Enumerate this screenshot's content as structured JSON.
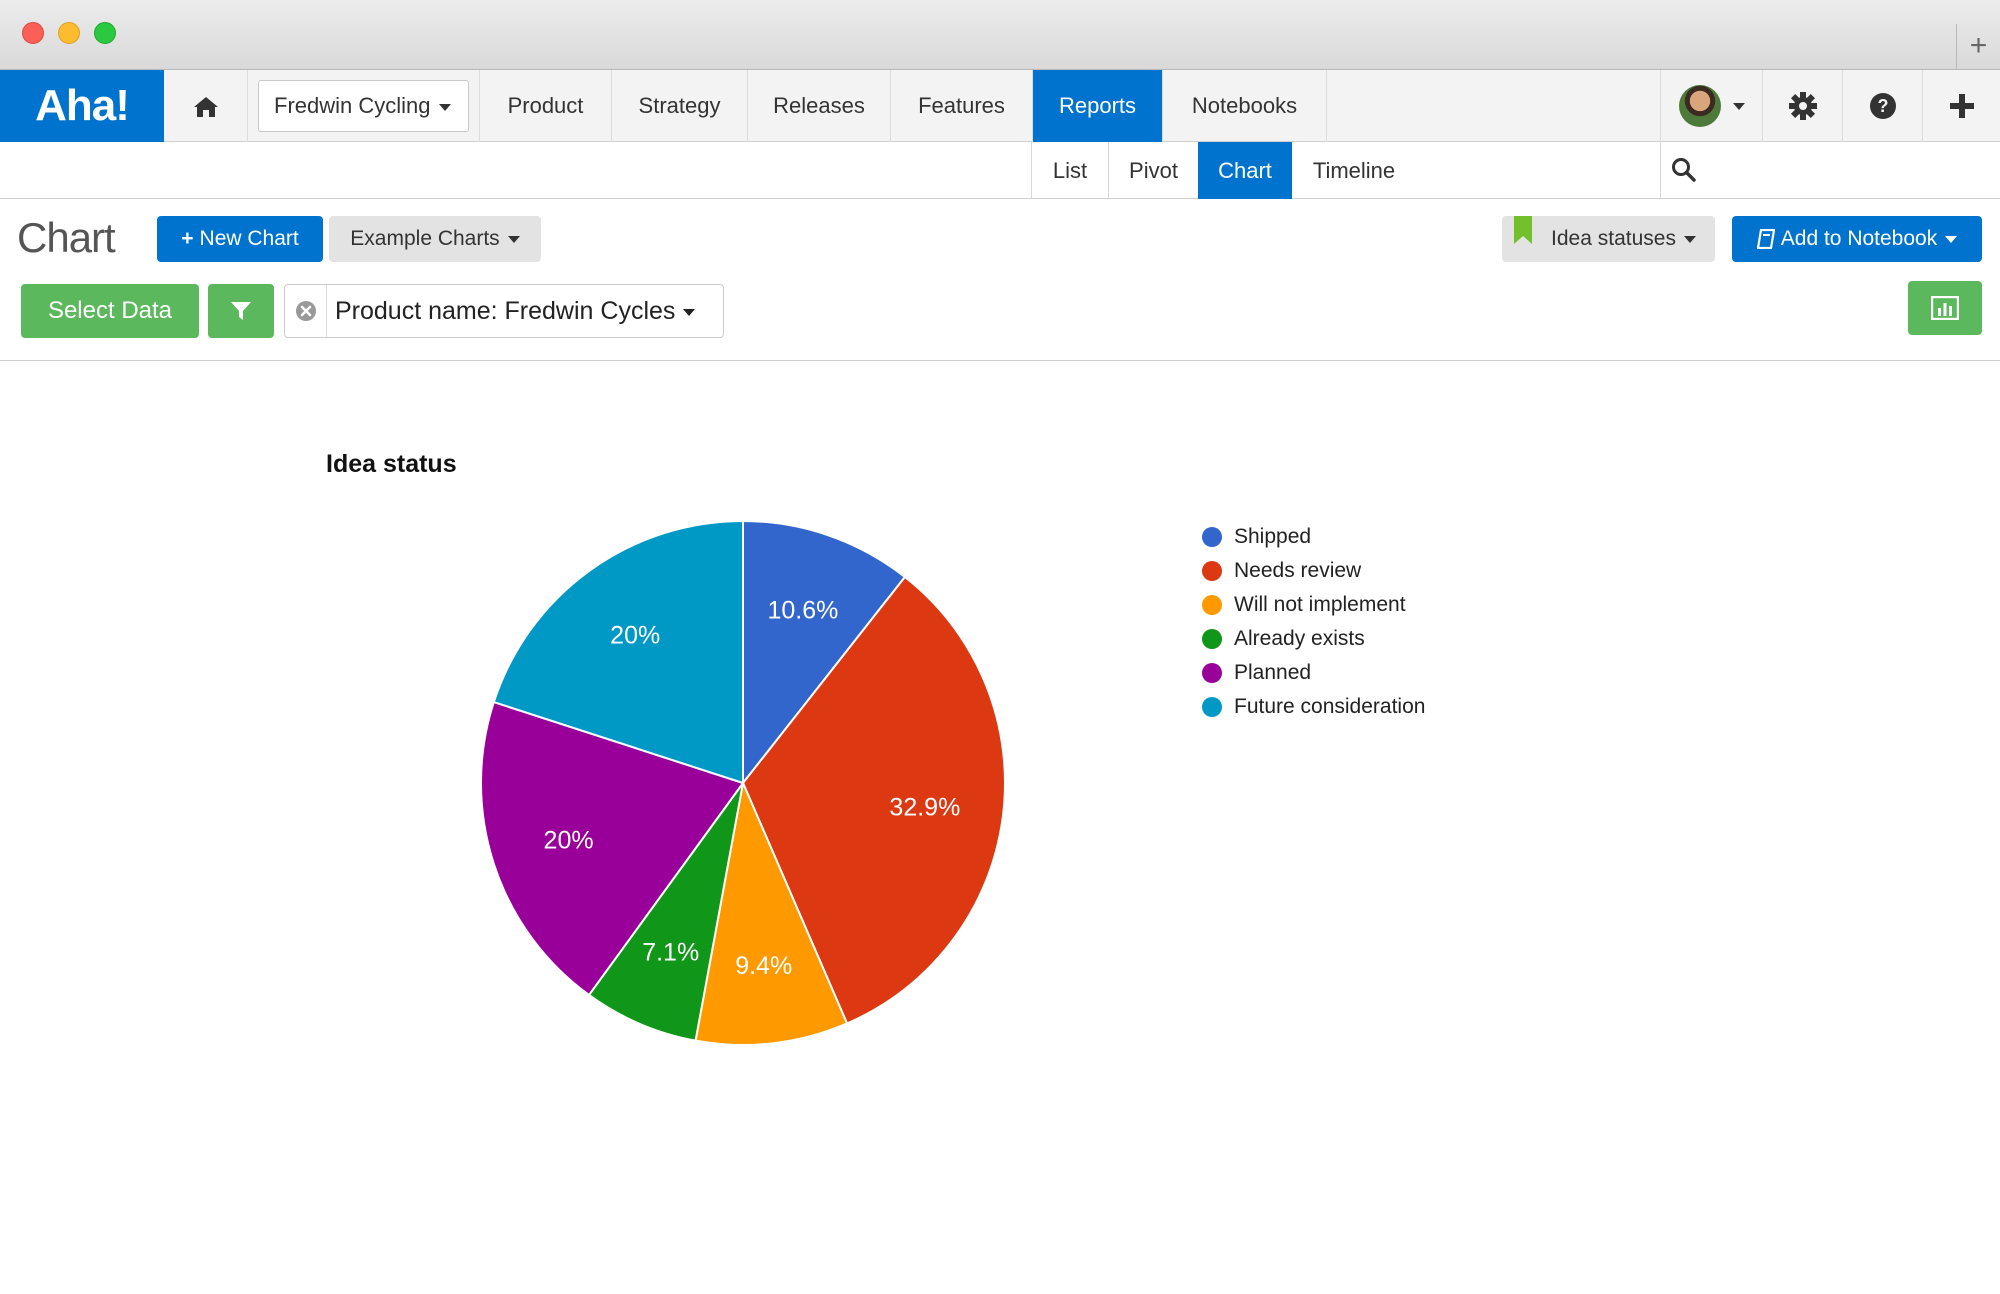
{
  "topnav": {
    "logo": "Aha!",
    "product_selector": "Fredwin Cycling",
    "items": [
      "Product",
      "Strategy",
      "Releases",
      "Features",
      "Reports",
      "Notebooks"
    ],
    "active": "Reports"
  },
  "subnav": {
    "items": [
      "List",
      "Pivot",
      "Chart",
      "Timeline"
    ],
    "active": "Chart"
  },
  "toolbar": {
    "page_title": "Chart",
    "new_chart": "New Chart",
    "example_charts": "Example Charts",
    "saved_view": "Idea statuses",
    "add_to_notebook": "Add to Notebook",
    "select_data": "Select Data",
    "filter_label": "Product name: Fredwin Cycles"
  },
  "colors": {
    "brand": "#0073cf",
    "success": "#5cb85c",
    "bookmark": "#72c02c"
  },
  "icons": [
    "home-icon",
    "gear-icon",
    "help-icon",
    "plus-icon",
    "search-icon",
    "filter-icon",
    "clear-filter-icon",
    "bookmark-icon",
    "notebook-icon",
    "bar-chart-icon"
  ],
  "chart_data": {
    "type": "pie",
    "title": "Idea status",
    "legend_position": "right",
    "slices": [
      {
        "name": "Shipped",
        "value": 10.6,
        "label": "10.6%",
        "color": "#3366cc"
      },
      {
        "name": "Needs review",
        "value": 32.9,
        "label": "32.9%",
        "color": "#dc3912"
      },
      {
        "name": "Will not implement",
        "value": 9.4,
        "label": "9.4%",
        "color": "#ff9900"
      },
      {
        "name": "Already exists",
        "value": 7.1,
        "label": "7.1%",
        "color": "#109618"
      },
      {
        "name": "Planned",
        "value": 20,
        "label": "20%",
        "color": "#990099"
      },
      {
        "name": "Future consideration",
        "value": 20,
        "label": "20%",
        "color": "#0099c6"
      }
    ]
  }
}
